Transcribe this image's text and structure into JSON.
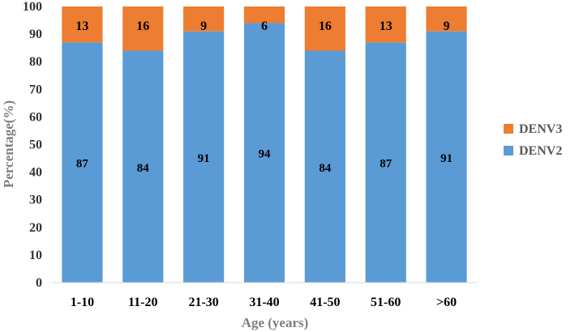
{
  "chart_data": {
    "type": "bar",
    "stacked": true,
    "categories": [
      "1-10",
      "11-20",
      "21-30",
      "31-40",
      "41-50",
      "51-60",
      ">60"
    ],
    "series": [
      {
        "name": "DENV2",
        "color": "#5b9bd5",
        "values": [
          87,
          84,
          91,
          94,
          84,
          87,
          91
        ]
      },
      {
        "name": "DENV3",
        "color": "#ed7d31",
        "values": [
          13,
          16,
          9,
          6,
          16,
          13,
          9
        ]
      }
    ],
    "xlabel": "Age (years)",
    "ylabel": "Percentage(%)",
    "ylim": [
      0,
      100
    ],
    "yticks": [
      "0",
      "10",
      "20",
      "30",
      "40",
      "50",
      "60",
      "70",
      "80",
      "90",
      "100"
    ],
    "grid": false,
    "legend": {
      "placement": "right",
      "entries": [
        "DENV3",
        "DENV2"
      ]
    },
    "data_labels": true
  }
}
